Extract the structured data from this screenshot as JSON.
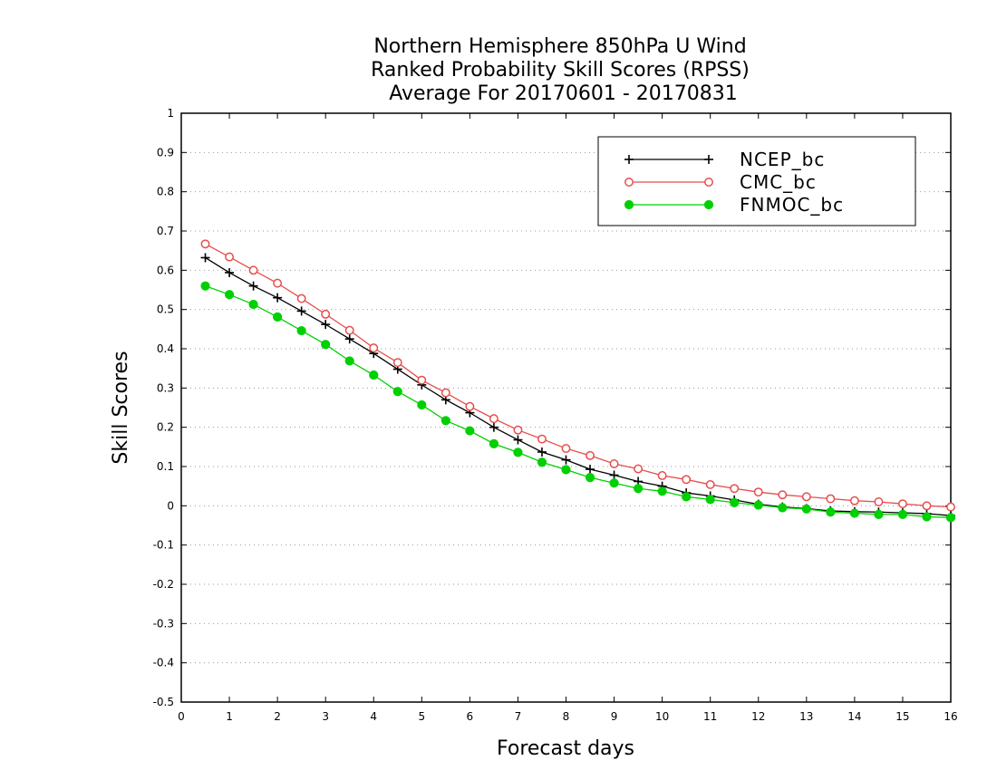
{
  "chart_data": {
    "type": "line",
    "title_lines": [
      "Northern Hemisphere 850hPa U Wind",
      "Ranked Probability Skill Scores (RPSS)",
      " Average For 20170601 - 20170831"
    ],
    "xlabel": "Forecast days",
    "ylabel": "Skill Scores",
    "xlim": [
      0,
      16
    ],
    "ylim": [
      -0.5,
      1
    ],
    "xticks": [
      "0",
      "1",
      "2",
      "3",
      "4",
      "5",
      "6",
      "7",
      "8",
      "9",
      "10",
      "11",
      "12",
      "13",
      "14",
      "15",
      "16"
    ],
    "yticks": [
      "1",
      "0.9",
      "0.8",
      "0.7",
      "0.6",
      "0.5",
      "0.4",
      "0.3",
      "0.2",
      "0.1",
      "0",
      "-0.1",
      "-0.2",
      "-0.3",
      "-0.4",
      "-0.5"
    ],
    "grid": true,
    "legend_position": "top-right",
    "x": [
      0.5,
      1,
      1.5,
      2,
      2.5,
      3,
      3.5,
      4,
      4.5,
      5,
      5.5,
      6,
      6.5,
      7,
      7.5,
      8,
      8.5,
      9,
      9.5,
      10,
      10.5,
      11,
      11.5,
      12,
      12.5,
      13,
      13.5,
      14,
      14.5,
      15,
      15.5,
      16
    ],
    "series": [
      {
        "name": "NCEP_bc",
        "color": "#000000",
        "marker": "plus",
        "values": [
          0.632,
          0.594,
          0.56,
          0.53,
          0.496,
          0.462,
          0.425,
          0.388,
          0.348,
          0.308,
          0.27,
          0.237,
          0.2,
          0.168,
          0.137,
          0.117,
          0.093,
          0.078,
          0.062,
          0.05,
          0.033,
          0.025,
          0.015,
          0.004,
          -0.003,
          -0.007,
          -0.013,
          -0.015,
          -0.016,
          -0.018,
          -0.02,
          -0.025
        ]
      },
      {
        "name": "CMC_bc",
        "color": "#e84c4c",
        "marker": "open-circle",
        "values": [
          0.667,
          0.634,
          0.6,
          0.567,
          0.528,
          0.488,
          0.447,
          0.402,
          0.365,
          0.32,
          0.288,
          0.253,
          0.222,
          0.193,
          0.17,
          0.146,
          0.128,
          0.107,
          0.094,
          0.077,
          0.067,
          0.054,
          0.044,
          0.035,
          0.028,
          0.023,
          0.018,
          0.013,
          0.01,
          0.005,
          0.0,
          -0.003
        ]
      },
      {
        "name": "FNMOC_bc",
        "color": "#00d000",
        "marker": "filled-circle",
        "values": [
          0.56,
          0.538,
          0.513,
          0.481,
          0.446,
          0.411,
          0.369,
          0.333,
          0.291,
          0.257,
          0.217,
          0.191,
          0.158,
          0.136,
          0.111,
          0.092,
          0.072,
          0.058,
          0.044,
          0.037,
          0.023,
          0.016,
          0.008,
          0.002,
          -0.005,
          -0.008,
          -0.016,
          -0.019,
          -0.022,
          -0.022,
          -0.028,
          -0.03
        ]
      }
    ]
  }
}
